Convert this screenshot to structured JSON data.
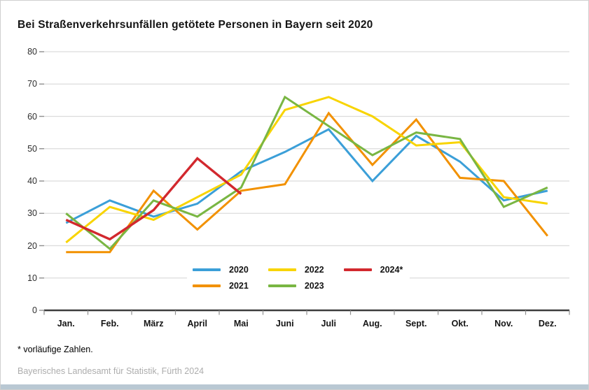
{
  "title": "Bei Straßenverkehrsunfällen getötete Personen in Bayern seit 2020",
  "chart_data": {
    "type": "line",
    "categories": [
      "Jan.",
      "Feb.",
      "März",
      "April",
      "Mai",
      "Juni",
      "Juli",
      "Aug.",
      "Sept.",
      "Okt.",
      "Nov.",
      "Dez."
    ],
    "ylim": [
      0,
      80
    ],
    "yticks": [
      0,
      10,
      20,
      30,
      40,
      50,
      60,
      70,
      80
    ],
    "grid": true,
    "legend_position": "bottom-center-inside",
    "series": [
      {
        "name": "2020",
        "color": "#3B9FD8",
        "values": [
          27,
          34,
          29,
          33,
          43,
          49,
          56,
          40,
          54,
          46,
          34,
          37
        ]
      },
      {
        "name": "2021",
        "color": "#F29100",
        "values": [
          18,
          18,
          37,
          25,
          37,
          39,
          61,
          45,
          59,
          41,
          40,
          23
        ]
      },
      {
        "name": "2022",
        "color": "#F8D400",
        "values": [
          21,
          32,
          28,
          35,
          42,
          62,
          66,
          60,
          51,
          52,
          35,
          33
        ]
      },
      {
        "name": "2023",
        "color": "#79B643",
        "values": [
          30,
          19,
          34,
          29,
          38,
          66,
          57,
          48,
          55,
          53,
          32,
          38
        ]
      },
      {
        "name": "2024*",
        "color": "#D2282E",
        "values": [
          28,
          22,
          31,
          47,
          36,
          null,
          null,
          null,
          null,
          null,
          null,
          null
        ]
      }
    ]
  },
  "footnote": "* vorläufige Zahlen.",
  "source": "Bayerisches Landesamt für Statistik, Fürth 2024",
  "style_colors": {
    "gridline": "#dcdcdc",
    "axis": "#3d3d3d",
    "tick": "#8f8f8f",
    "bottom_strip": "#b9c8d3"
  }
}
